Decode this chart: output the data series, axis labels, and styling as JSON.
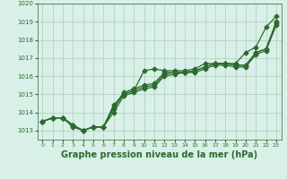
{
  "x": [
    0,
    1,
    2,
    3,
    4,
    5,
    6,
    7,
    8,
    9,
    10,
    11,
    12,
    13,
    14,
    15,
    16,
    17,
    18,
    19,
    20,
    21,
    22,
    23
  ],
  "series": [
    [
      1013.5,
      1013.7,
      1013.7,
      1013.3,
      1013.0,
      1013.2,
      1013.2,
      1014.4,
      1015.0,
      1015.2,
      1016.3,
      1016.4,
      1016.3,
      1016.3,
      1016.3,
      1016.4,
      1016.7,
      1016.7,
      1016.7,
      1016.7,
      1017.3,
      1017.6,
      1018.7,
      1019.3
    ],
    [
      1013.5,
      1013.7,
      1013.7,
      1013.3,
      1013.0,
      1013.2,
      1013.2,
      1014.3,
      1015.1,
      1015.3,
      1015.5,
      1015.6,
      1016.2,
      1016.2,
      1016.2,
      1016.3,
      1016.5,
      1016.7,
      1016.7,
      1016.6,
      1016.6,
      1017.3,
      1017.5,
      1019.0
    ],
    [
      1013.5,
      1013.7,
      1013.7,
      1013.3,
      1013.0,
      1013.2,
      1013.2,
      1014.2,
      1015.0,
      1015.2,
      1015.4,
      1015.5,
      1016.1,
      1016.2,
      1016.2,
      1016.3,
      1016.5,
      1016.7,
      1016.7,
      1016.6,
      1016.6,
      1017.3,
      1017.5,
      1018.9
    ],
    [
      1013.5,
      1013.7,
      1013.7,
      1013.2,
      1013.0,
      1013.2,
      1013.2,
      1014.0,
      1014.9,
      1015.1,
      1015.3,
      1015.4,
      1016.0,
      1016.1,
      1016.2,
      1016.2,
      1016.4,
      1016.6,
      1016.6,
      1016.5,
      1016.5,
      1017.2,
      1017.4,
      1018.8
    ]
  ],
  "line_color": "#2d6a2d",
  "bg_color": "#d8f0e8",
  "grid_color": "#b0ccbc",
  "ylim": [
    1012.5,
    1020.0
  ],
  "yticks": [
    1013,
    1014,
    1015,
    1016,
    1017,
    1018,
    1019,
    1020
  ],
  "xticks": [
    0,
    1,
    2,
    3,
    4,
    5,
    6,
    7,
    8,
    9,
    10,
    11,
    12,
    13,
    14,
    15,
    16,
    17,
    18,
    19,
    20,
    21,
    22,
    23
  ],
  "xlabel": "Graphe pression niveau de la mer (hPa)",
  "xlabel_fontsize": 7,
  "marker": "D",
  "markersize": 2.5,
  "linewidth": 0.9,
  "fig_width": 3.2,
  "fig_height": 2.0,
  "dpi": 100
}
